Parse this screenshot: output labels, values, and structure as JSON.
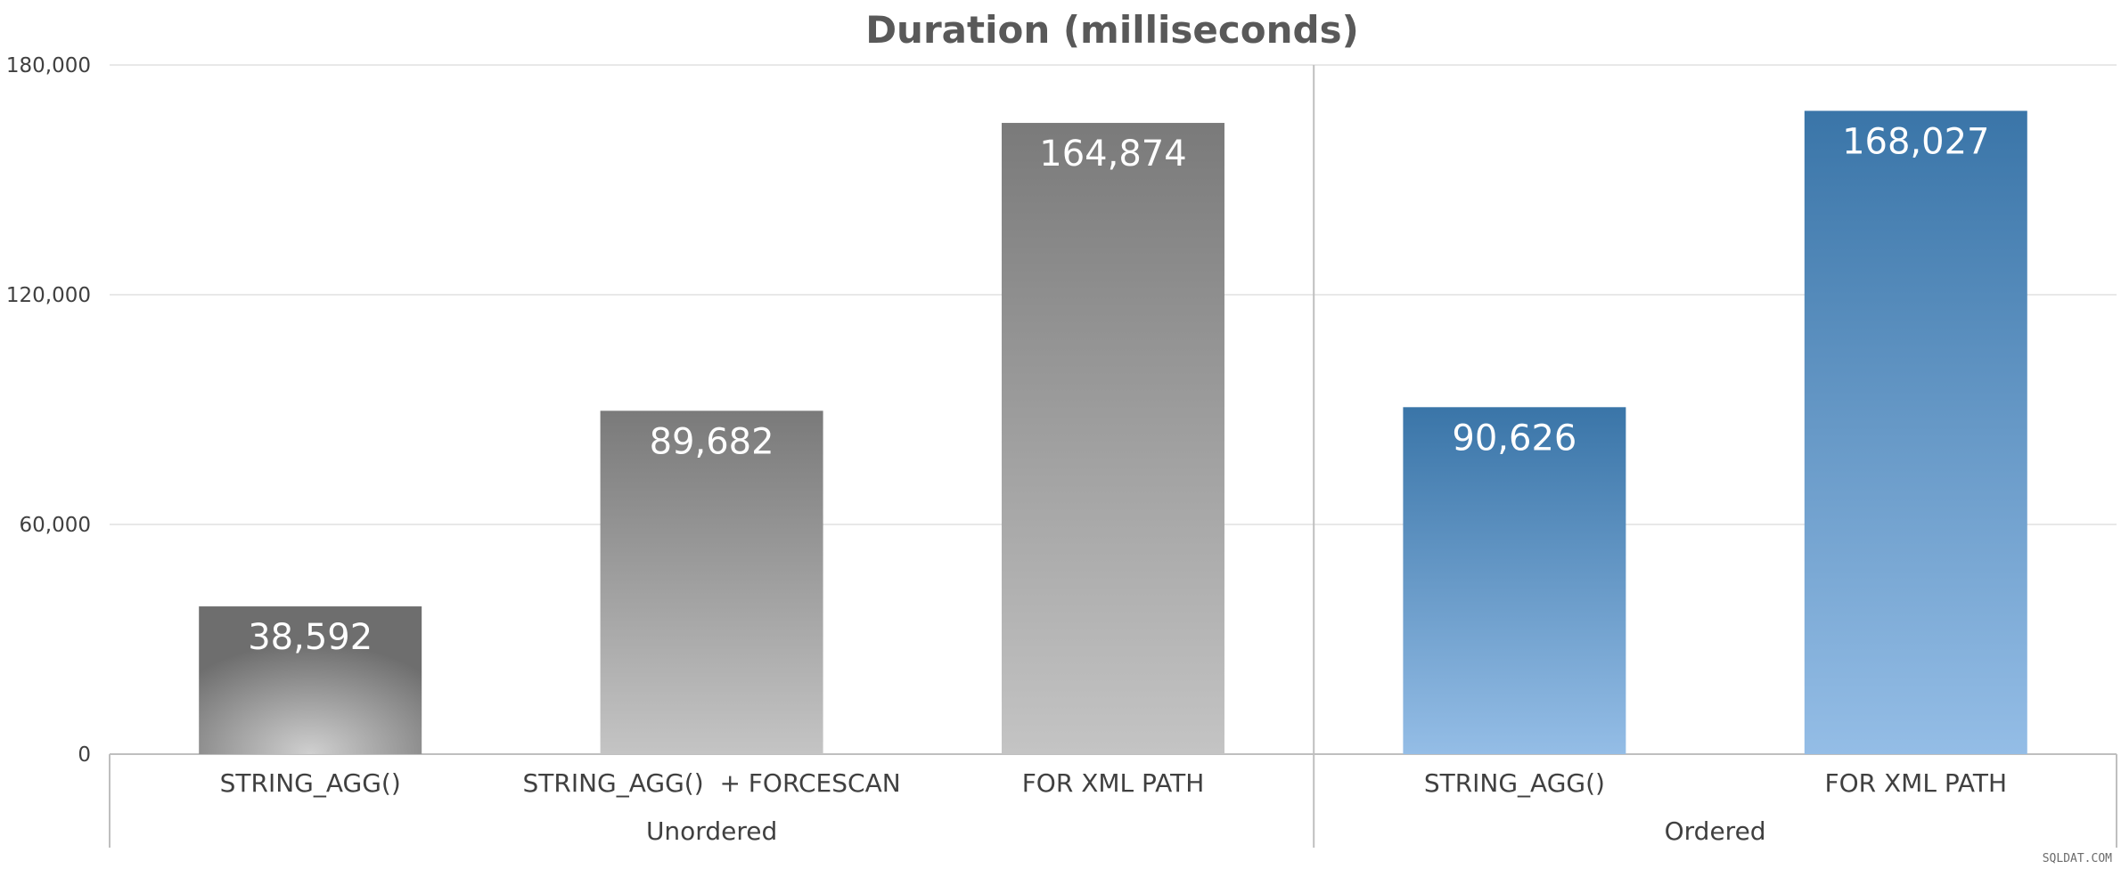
{
  "chart_data": {
    "type": "bar",
    "title": "Duration (milliseconds)",
    "xlabel": "",
    "ylabel": "",
    "ylim": [
      0,
      180000
    ],
    "yticks": [
      0,
      60000,
      120000,
      180000
    ],
    "ytick_labels": [
      "0",
      "60,000",
      "120,000",
      "180,000"
    ],
    "grid": true,
    "groups": [
      {
        "label": "Unordered",
        "start": 0,
        "count": 3
      },
      {
        "label": "Ordered",
        "start": 3,
        "count": 2
      }
    ],
    "categories": [
      "STRING_AGG()",
      "STRING_AGG()  + FORCESCAN",
      "FOR XML PATH",
      "STRING_AGG()",
      "FOR XML PATH"
    ],
    "values": [
      38592,
      89682,
      164874,
      90626,
      168027
    ],
    "value_labels": [
      "38,592",
      "89,682",
      "164,874",
      "90,626",
      "168,027"
    ],
    "colors": {
      "unordered_dark": "#7a7a7a",
      "unordered_light": "#c4c4c4",
      "ordered_dark": "#3a75a8",
      "ordered_light": "#94bde6",
      "grid": "#e8e8e8",
      "axis": "#bfbfbf"
    }
  },
  "watermark": "SQLDAT.COM"
}
